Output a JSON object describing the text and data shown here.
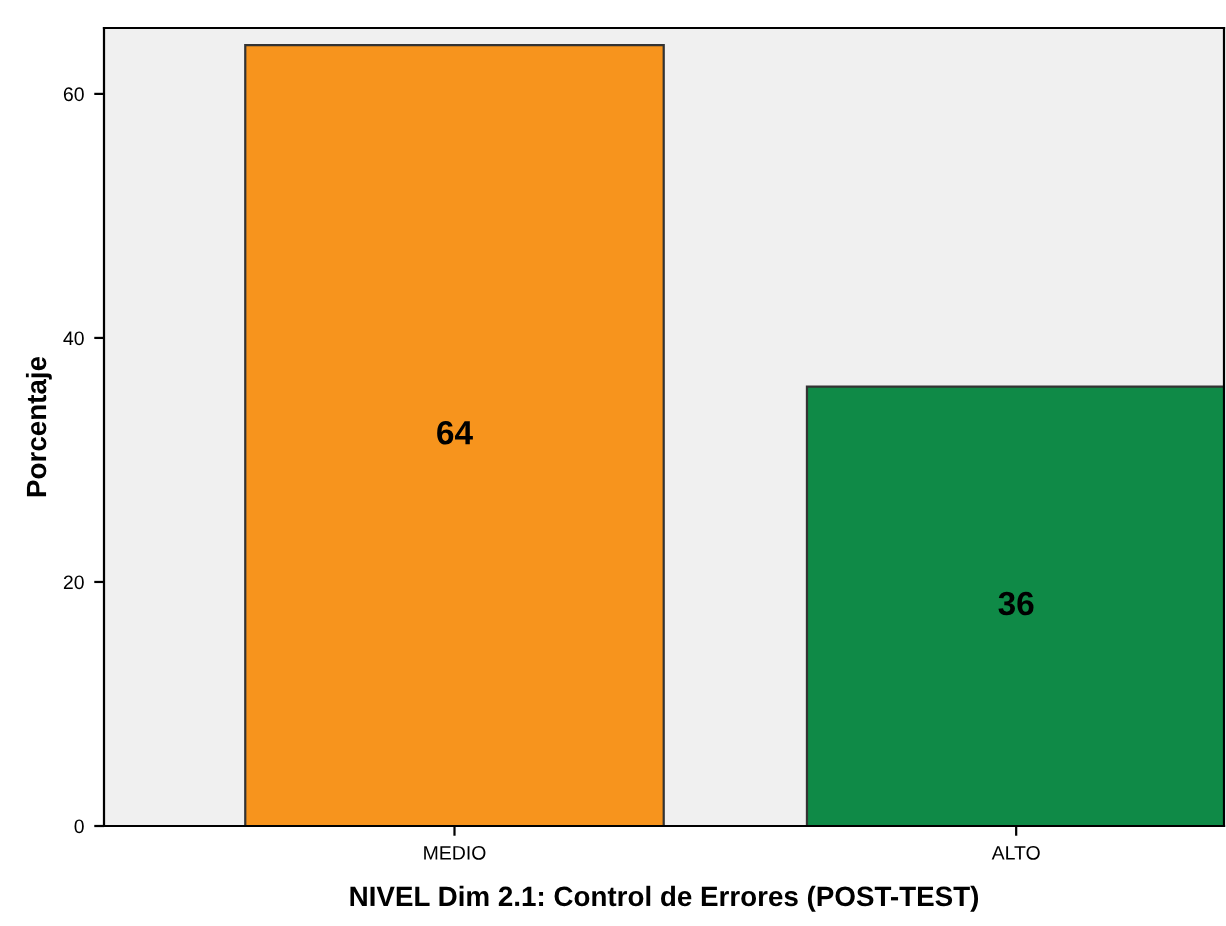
{
  "chart_data": {
    "type": "bar",
    "xlabel": "NIVEL Dim 2.1: Control de Errores (POST-TEST)",
    "ylabel": "Porcentaje",
    "categories": [
      "MEDIO",
      "ALTO"
    ],
    "values": [
      64,
      36
    ],
    "colors": [
      "#f7941d",
      "#0f8a47"
    ],
    "ylim": [
      0,
      65.4
    ],
    "yticks": [
      0,
      20,
      40,
      60
    ],
    "grid": false,
    "data_labels": true
  }
}
